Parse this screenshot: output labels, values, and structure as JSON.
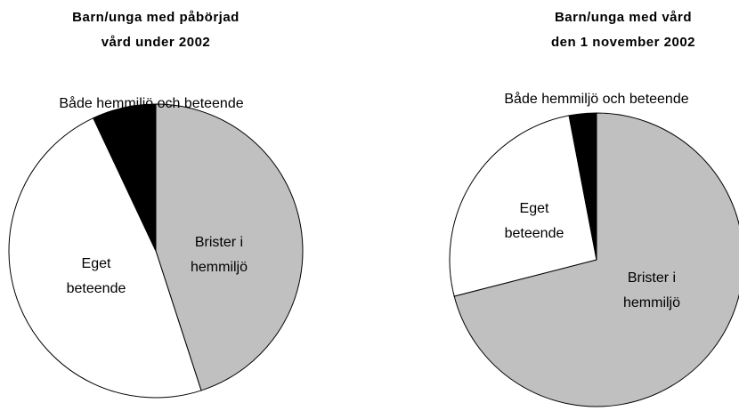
{
  "chart_data": [
    {
      "type": "pie",
      "title": [
        "Barn/unga med påbörjad",
        "vård under 2002"
      ],
      "categories": [
        [
          "Brister i",
          "hemmiljö"
        ],
        [
          "Eget",
          "beteende"
        ],
        [
          "Både hemmiljö och beteende"
        ]
      ],
      "values": [
        45,
        48,
        7
      ],
      "colors": [
        "#c0c0c0",
        "#ffffff",
        "#000000"
      ]
    },
    {
      "type": "pie",
      "title": [
        "Barn/unga med vård",
        "den 1 november 2002"
      ],
      "categories": [
        [
          "Brister i",
          "hemmiljö"
        ],
        [
          "Eget",
          "beteende"
        ],
        [
          "Både hemmiljö och beteende"
        ]
      ],
      "values": [
        71,
        26,
        3
      ],
      "colors": [
        "#c0c0c0",
        "#ffffff",
        "#000000"
      ]
    }
  ]
}
